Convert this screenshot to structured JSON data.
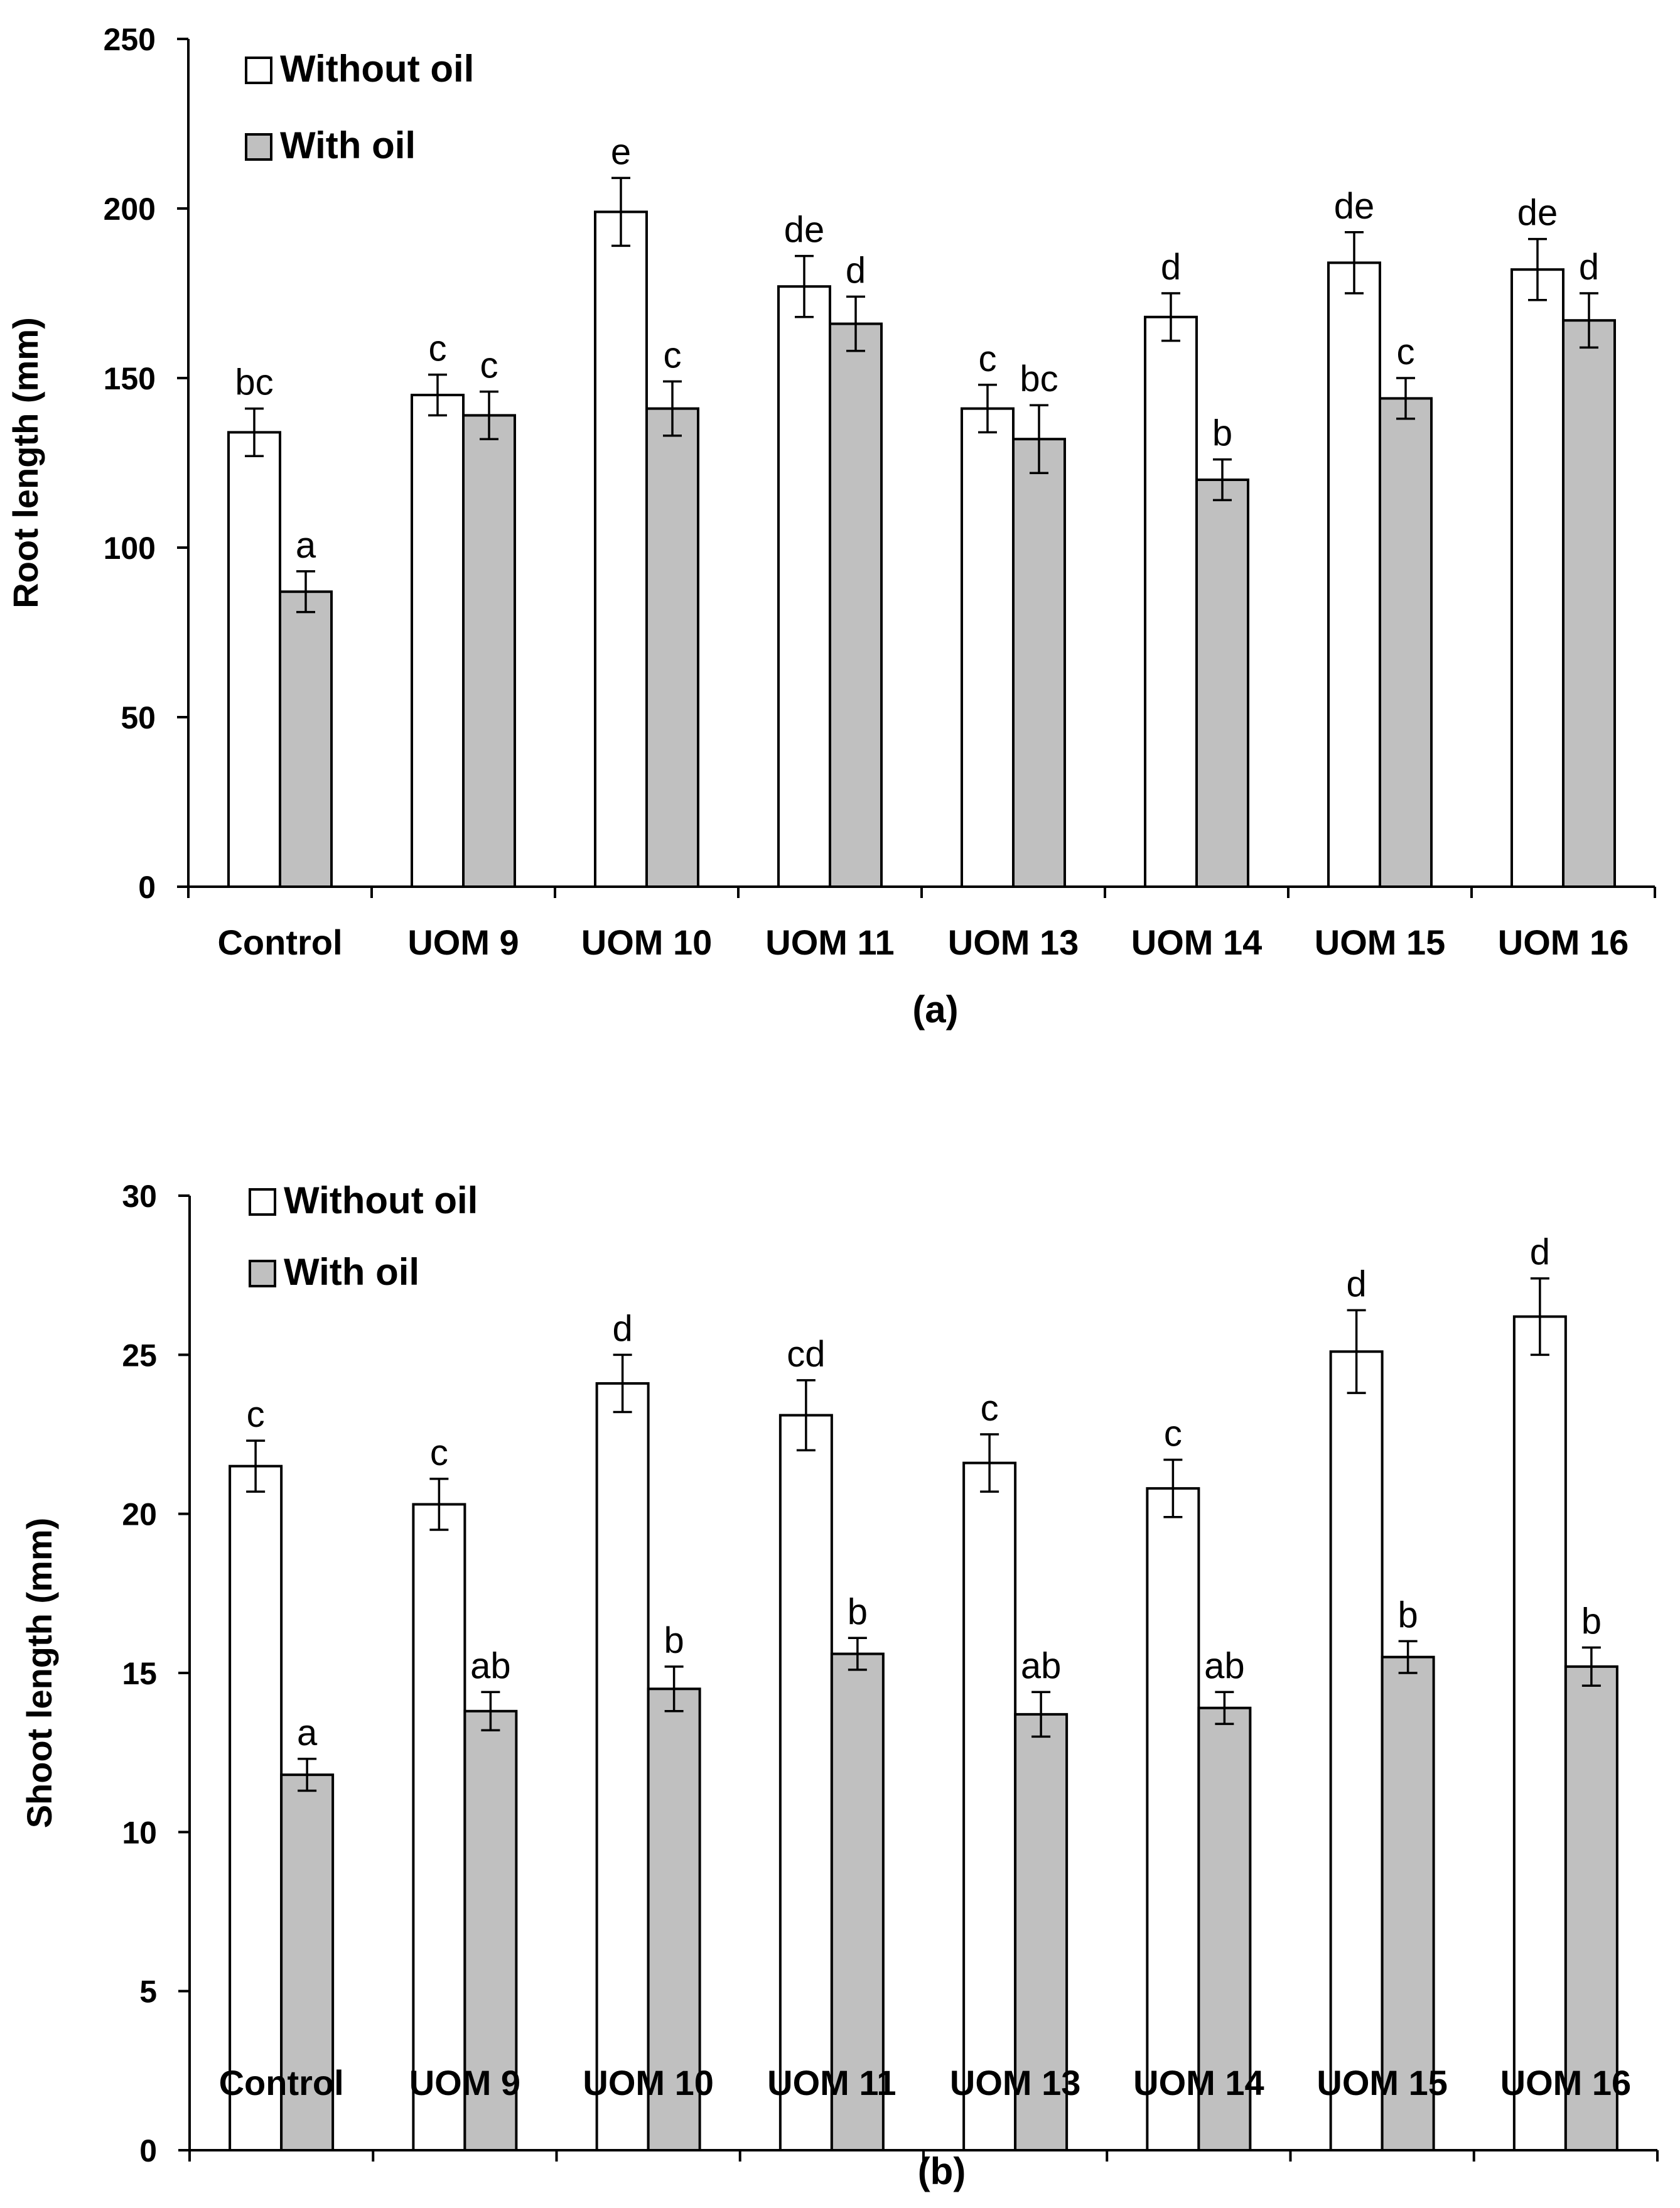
{
  "chart_data": [
    {
      "type": "bar",
      "panel": "(a)",
      "title": "",
      "xlabel": "",
      "ylabel": "Root length (mm)",
      "ylim": [
        0,
        250
      ],
      "yticks": [
        0,
        50,
        100,
        150,
        200,
        250
      ],
      "categories": [
        "Control",
        "UOM 9",
        "UOM 10",
        "UOM 11",
        "UOM 13",
        "UOM 14",
        "UOM 15",
        "UOM 16"
      ],
      "legend_position": "top-left",
      "series": [
        {
          "name": "Without oil",
          "color": "#ffffff",
          "values": [
            134,
            145,
            199,
            177,
            141,
            168,
            184,
            182
          ],
          "errors": [
            7,
            6,
            10,
            9,
            7,
            7,
            9,
            9
          ],
          "letters": [
            "bc",
            "c",
            "e",
            "de",
            "c",
            "d",
            "de",
            "de"
          ]
        },
        {
          "name": "With oil",
          "color": "#c0c0c0",
          "values": [
            87,
            139,
            141,
            166,
            132,
            120,
            144,
            167
          ],
          "errors": [
            6,
            7,
            8,
            8,
            10,
            6,
            6,
            8
          ],
          "letters": [
            "a",
            "c",
            "c",
            "d",
            "bc",
            "b",
            "c",
            "d"
          ]
        }
      ]
    },
    {
      "type": "bar",
      "panel": "(b)",
      "title": "",
      "xlabel": "",
      "ylabel": "Shoot length (mm)",
      "ylim": [
        0,
        30
      ],
      "yticks": [
        0,
        5,
        10,
        15,
        20,
        25,
        30
      ],
      "categories": [
        "Control",
        "UOM 9",
        "UOM 10",
        "UOM 11",
        "UOM 13",
        "UOM 14",
        "UOM 15",
        "UOM 16"
      ],
      "legend_position": "top-left",
      "series": [
        {
          "name": "Without oil",
          "color": "#ffffff",
          "values": [
            21.5,
            20.3,
            24.1,
            23.1,
            21.6,
            20.8,
            25.1,
            26.2
          ],
          "errors": [
            0.8,
            0.8,
            0.9,
            1.1,
            0.9,
            0.9,
            1.3,
            1.2
          ],
          "letters": [
            "c",
            "c",
            "d",
            "cd",
            "c",
            "c",
            "d",
            "d"
          ]
        },
        {
          "name": "With oil",
          "color": "#c0c0c0",
          "values": [
            11.8,
            13.8,
            14.5,
            15.6,
            13.7,
            13.9,
            15.5,
            15.2
          ],
          "errors": [
            0.5,
            0.6,
            0.7,
            0.5,
            0.7,
            0.5,
            0.5,
            0.6
          ],
          "letters": [
            "a",
            "ab",
            "b",
            "b",
            "ab",
            "ab",
            "b",
            "b"
          ]
        }
      ]
    }
  ]
}
